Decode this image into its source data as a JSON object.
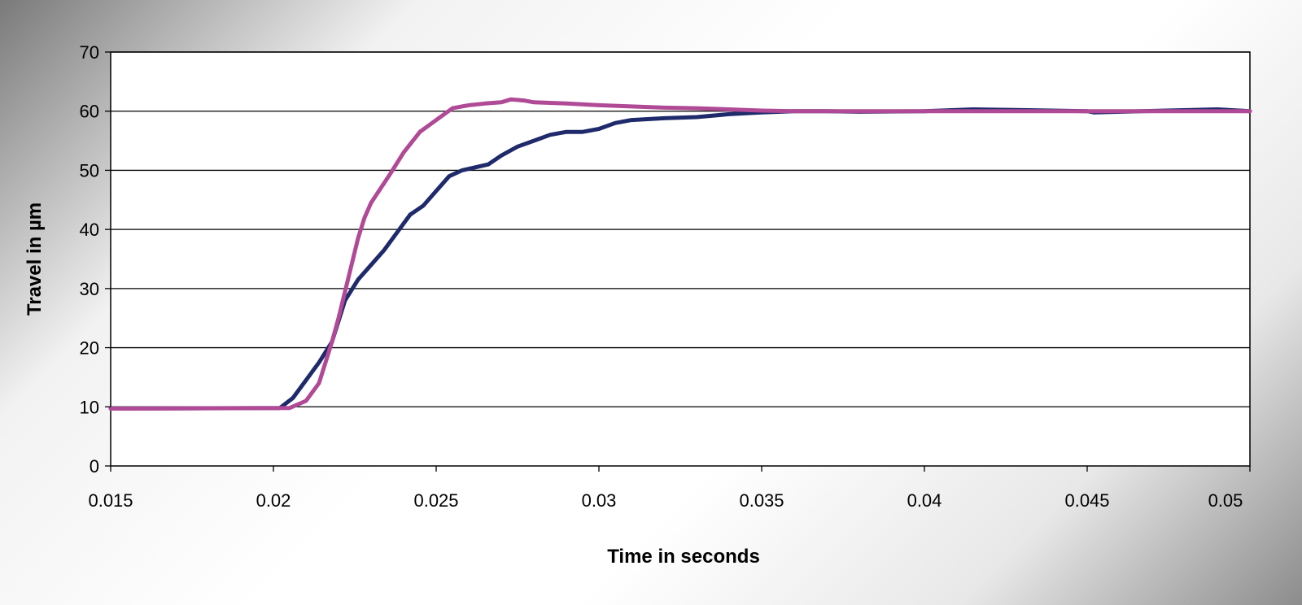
{
  "chart_data": {
    "type": "line",
    "title": "",
    "xlabel": "Time in seconds",
    "ylabel": "Travel in µm",
    "xlim": [
      0.015,
      0.05
    ],
    "ylim": [
      0,
      70
    ],
    "x_ticks": [
      0.015,
      0.02,
      0.025,
      0.03,
      0.035,
      0.04,
      0.045,
      0.05
    ],
    "x_tick_labels": [
      "0.015",
      "0.02",
      "0.025",
      "0.03",
      "0.035",
      "0.04",
      "0.045",
      "0.05"
    ],
    "y_ticks": [
      0,
      10,
      20,
      30,
      40,
      50,
      60,
      70
    ],
    "y_tick_labels": [
      "0",
      "10",
      "20",
      "30",
      "40",
      "50",
      "60",
      "70"
    ],
    "grid": "horizontal",
    "legend": "none",
    "series": [
      {
        "color": "#1f2a6b",
        "x": [
          0.015,
          0.0202,
          0.0206,
          0.021,
          0.0214,
          0.0218,
          0.022,
          0.0222,
          0.0226,
          0.023,
          0.0234,
          0.0238,
          0.0242,
          0.0246,
          0.025,
          0.0254,
          0.0258,
          0.0262,
          0.0266,
          0.027,
          0.0275,
          0.028,
          0.0285,
          0.029,
          0.0295,
          0.03,
          0.0305,
          0.031,
          0.032,
          0.033,
          0.034,
          0.035,
          0.036,
          0.037,
          0.038,
          0.04,
          0.0415,
          0.045,
          0.0452,
          0.049,
          0.05
        ],
        "y": [
          9.7,
          9.8,
          11.5,
          14.5,
          17.5,
          21.0,
          24.5,
          28.0,
          31.5,
          34.0,
          36.5,
          39.5,
          42.5,
          44.0,
          46.5,
          49.0,
          50.0,
          50.5,
          51.0,
          52.5,
          54.0,
          55.0,
          56.0,
          56.5,
          56.5,
          57.0,
          58.0,
          58.5,
          58.8,
          59.0,
          59.5,
          59.8,
          60.0,
          60.0,
          59.9,
          60.0,
          60.3,
          60.0,
          59.8,
          60.3,
          60.0
        ]
      },
      {
        "color": "#b04a96",
        "x": [
          0.015,
          0.0205,
          0.021,
          0.0214,
          0.0216,
          0.0218,
          0.022,
          0.0222,
          0.0224,
          0.0226,
          0.0228,
          0.023,
          0.0233,
          0.0236,
          0.024,
          0.0245,
          0.025,
          0.0255,
          0.026,
          0.0265,
          0.027,
          0.0273,
          0.0277,
          0.028,
          0.029,
          0.03,
          0.031,
          0.032,
          0.033,
          0.034,
          0.035,
          0.036,
          0.038,
          0.04,
          0.045,
          0.05
        ],
        "y": [
          9.7,
          9.8,
          11.0,
          14.0,
          17.5,
          21.0,
          25.0,
          29.5,
          34.0,
          38.5,
          42.0,
          44.5,
          47.0,
          49.5,
          53.0,
          56.5,
          58.5,
          60.5,
          61.0,
          61.3,
          61.5,
          62.0,
          61.8,
          61.5,
          61.3,
          61.0,
          60.8,
          60.6,
          60.5,
          60.3,
          60.1,
          60.0,
          60.0,
          60.0,
          60.0,
          60.0
        ]
      }
    ]
  }
}
